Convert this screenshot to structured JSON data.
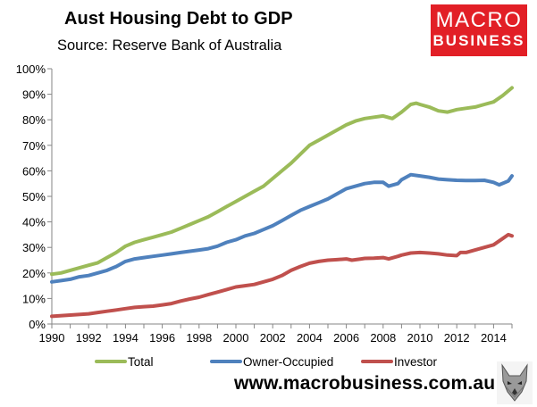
{
  "header": {
    "title": "Aust Housing Debt to GDP",
    "subtitle": "Source: Reserve Bank of Australia"
  },
  "logo": {
    "line1": "MACRO",
    "line2": "BUSINESS",
    "color": "#e21f26"
  },
  "footer": {
    "website": "www.macrobusiness.com.au",
    "logo_icon": "wolf-head-icon"
  },
  "chart_data": {
    "type": "line",
    "title": "Aust Housing Debt to GDP",
    "subtitle": "Source: Reserve Bank of Australia",
    "xlim": [
      1990,
      2015
    ],
    "ylim": [
      0,
      100
    ],
    "y_unit": "%",
    "x_ticks": [
      1990,
      1992,
      1994,
      1996,
      1998,
      2000,
      2002,
      2004,
      2006,
      2008,
      2010,
      2012,
      2014
    ],
    "x_tick_labels": [
      "1990",
      "1992",
      "1994",
      "1996",
      "1998",
      "2000",
      "2002",
      "2004",
      "2006",
      "2008",
      "2010",
      "2012",
      "2014"
    ],
    "y_ticks": [
      0,
      10,
      20,
      30,
      40,
      50,
      60,
      70,
      80,
      90,
      100
    ],
    "y_tick_labels": [
      "0%",
      "10%",
      "20%",
      "30%",
      "40%",
      "50%",
      "60%",
      "70%",
      "80%",
      "90%",
      "100%"
    ],
    "grid": false,
    "legend_position": "bottom",
    "series": [
      {
        "name": "Total",
        "color": "#9bbb59",
        "points": [
          [
            1990,
            19.5
          ],
          [
            1990.5,
            20
          ],
          [
            1991,
            21
          ],
          [
            1991.5,
            22
          ],
          [
            1992,
            23
          ],
          [
            1992.5,
            24
          ],
          [
            1993,
            26
          ],
          [
            1993.5,
            28
          ],
          [
            1994,
            30.5
          ],
          [
            1994.5,
            32
          ],
          [
            1995,
            33
          ],
          [
            1995.5,
            34
          ],
          [
            1996,
            35
          ],
          [
            1996.5,
            36
          ],
          [
            1997,
            37.5
          ],
          [
            1997.5,
            39
          ],
          [
            1998,
            40.5
          ],
          [
            1998.5,
            42
          ],
          [
            1999,
            44
          ],
          [
            1999.5,
            46
          ],
          [
            2000,
            48
          ],
          [
            2000.5,
            50
          ],
          [
            2001,
            52
          ],
          [
            2001.5,
            54
          ],
          [
            2002,
            57
          ],
          [
            2002.5,
            60
          ],
          [
            2003,
            63
          ],
          [
            2003.5,
            66.5
          ],
          [
            2004,
            70
          ],
          [
            2004.5,
            72
          ],
          [
            2005,
            74
          ],
          [
            2005.5,
            76
          ],
          [
            2006,
            78
          ],
          [
            2006.5,
            79.5
          ],
          [
            2007,
            80.5
          ],
          [
            2007.5,
            81
          ],
          [
            2008,
            81.5
          ],
          [
            2008.5,
            80.5
          ],
          [
            2009,
            83
          ],
          [
            2009.5,
            86
          ],
          [
            2009.8,
            86.5
          ],
          [
            2010,
            86
          ],
          [
            2010.5,
            85
          ],
          [
            2011,
            83.5
          ],
          [
            2011.5,
            83
          ],
          [
            2012,
            84
          ],
          [
            2012.5,
            84.5
          ],
          [
            2013,
            85
          ],
          [
            2013.5,
            86
          ],
          [
            2014,
            87
          ],
          [
            2014.5,
            89.5
          ],
          [
            2015,
            92.5
          ]
        ]
      },
      {
        "name": "Owner-Occupied",
        "color": "#4f81bd",
        "points": [
          [
            1990,
            16.5
          ],
          [
            1990.5,
            17
          ],
          [
            1991,
            17.5
          ],
          [
            1991.5,
            18.5
          ],
          [
            1992,
            19
          ],
          [
            1992.5,
            20
          ],
          [
            1993,
            21
          ],
          [
            1993.5,
            22.5
          ],
          [
            1994,
            24.5
          ],
          [
            1994.5,
            25.5
          ],
          [
            1995,
            26
          ],
          [
            1995.5,
            26.5
          ],
          [
            1996,
            27
          ],
          [
            1996.5,
            27.5
          ],
          [
            1997,
            28
          ],
          [
            1997.5,
            28.5
          ],
          [
            1998,
            29
          ],
          [
            1998.5,
            29.5
          ],
          [
            1999,
            30.5
          ],
          [
            1999.5,
            32
          ],
          [
            2000,
            33
          ],
          [
            2000.5,
            34.5
          ],
          [
            2001,
            35.5
          ],
          [
            2001.5,
            37
          ],
          [
            2002,
            38.5
          ],
          [
            2002.5,
            40.5
          ],
          [
            2003,
            42.5
          ],
          [
            2003.5,
            44.5
          ],
          [
            2004,
            46
          ],
          [
            2004.5,
            47.5
          ],
          [
            2005,
            49
          ],
          [
            2005.5,
            51
          ],
          [
            2006,
            53
          ],
          [
            2006.5,
            54
          ],
          [
            2007,
            55
          ],
          [
            2007.5,
            55.5
          ],
          [
            2008,
            55.5
          ],
          [
            2008.3,
            54
          ],
          [
            2008.8,
            55
          ],
          [
            2009,
            56.5
          ],
          [
            2009.5,
            58.5
          ],
          [
            2010,
            58
          ],
          [
            2010.5,
            57.5
          ],
          [
            2011,
            56.8
          ],
          [
            2011.5,
            56.5
          ],
          [
            2012,
            56.3
          ],
          [
            2012.5,
            56.2
          ],
          [
            2013,
            56.2
          ],
          [
            2013.5,
            56.3
          ],
          [
            2014,
            55.5
          ],
          [
            2014.3,
            54.5
          ],
          [
            2014.8,
            56
          ],
          [
            2015,
            58
          ]
        ]
      },
      {
        "name": "Investor",
        "color": "#c0504d",
        "points": [
          [
            1990,
            3
          ],
          [
            1991,
            3.5
          ],
          [
            1992,
            4
          ],
          [
            1992.5,
            4.5
          ],
          [
            1993,
            5
          ],
          [
            1993.5,
            5.5
          ],
          [
            1994,
            6
          ],
          [
            1994.5,
            6.5
          ],
          [
            1995,
            6.8
          ],
          [
            1995.5,
            7
          ],
          [
            1996,
            7.5
          ],
          [
            1996.5,
            8
          ],
          [
            1997,
            9
          ],
          [
            1997.5,
            9.8
          ],
          [
            1998,
            10.5
          ],
          [
            1998.5,
            11.5
          ],
          [
            1999,
            12.5
          ],
          [
            1999.5,
            13.5
          ],
          [
            2000,
            14.5
          ],
          [
            2000.5,
            15
          ],
          [
            2001,
            15.5
          ],
          [
            2001.5,
            16.5
          ],
          [
            2002,
            17.5
          ],
          [
            2002.5,
            19
          ],
          [
            2003,
            21
          ],
          [
            2003.5,
            22.5
          ],
          [
            2004,
            23.8
          ],
          [
            2004.5,
            24.5
          ],
          [
            2005,
            25
          ],
          [
            2005.5,
            25.2
          ],
          [
            2006,
            25.5
          ],
          [
            2006.3,
            25
          ],
          [
            2006.8,
            25.5
          ],
          [
            2007,
            25.7
          ],
          [
            2007.5,
            25.8
          ],
          [
            2008,
            26
          ],
          [
            2008.3,
            25.5
          ],
          [
            2008.8,
            26.5
          ],
          [
            2009,
            27
          ],
          [
            2009.5,
            27.8
          ],
          [
            2010,
            28
          ],
          [
            2010.5,
            27.8
          ],
          [
            2011,
            27.5
          ],
          [
            2011.5,
            27
          ],
          [
            2012,
            26.8
          ],
          [
            2012.2,
            28
          ],
          [
            2012.5,
            28
          ],
          [
            2013,
            29
          ],
          [
            2013.5,
            30
          ],
          [
            2014,
            31
          ],
          [
            2014.5,
            33.5
          ],
          [
            2014.8,
            35
          ],
          [
            2015,
            34.5
          ]
        ]
      }
    ]
  }
}
